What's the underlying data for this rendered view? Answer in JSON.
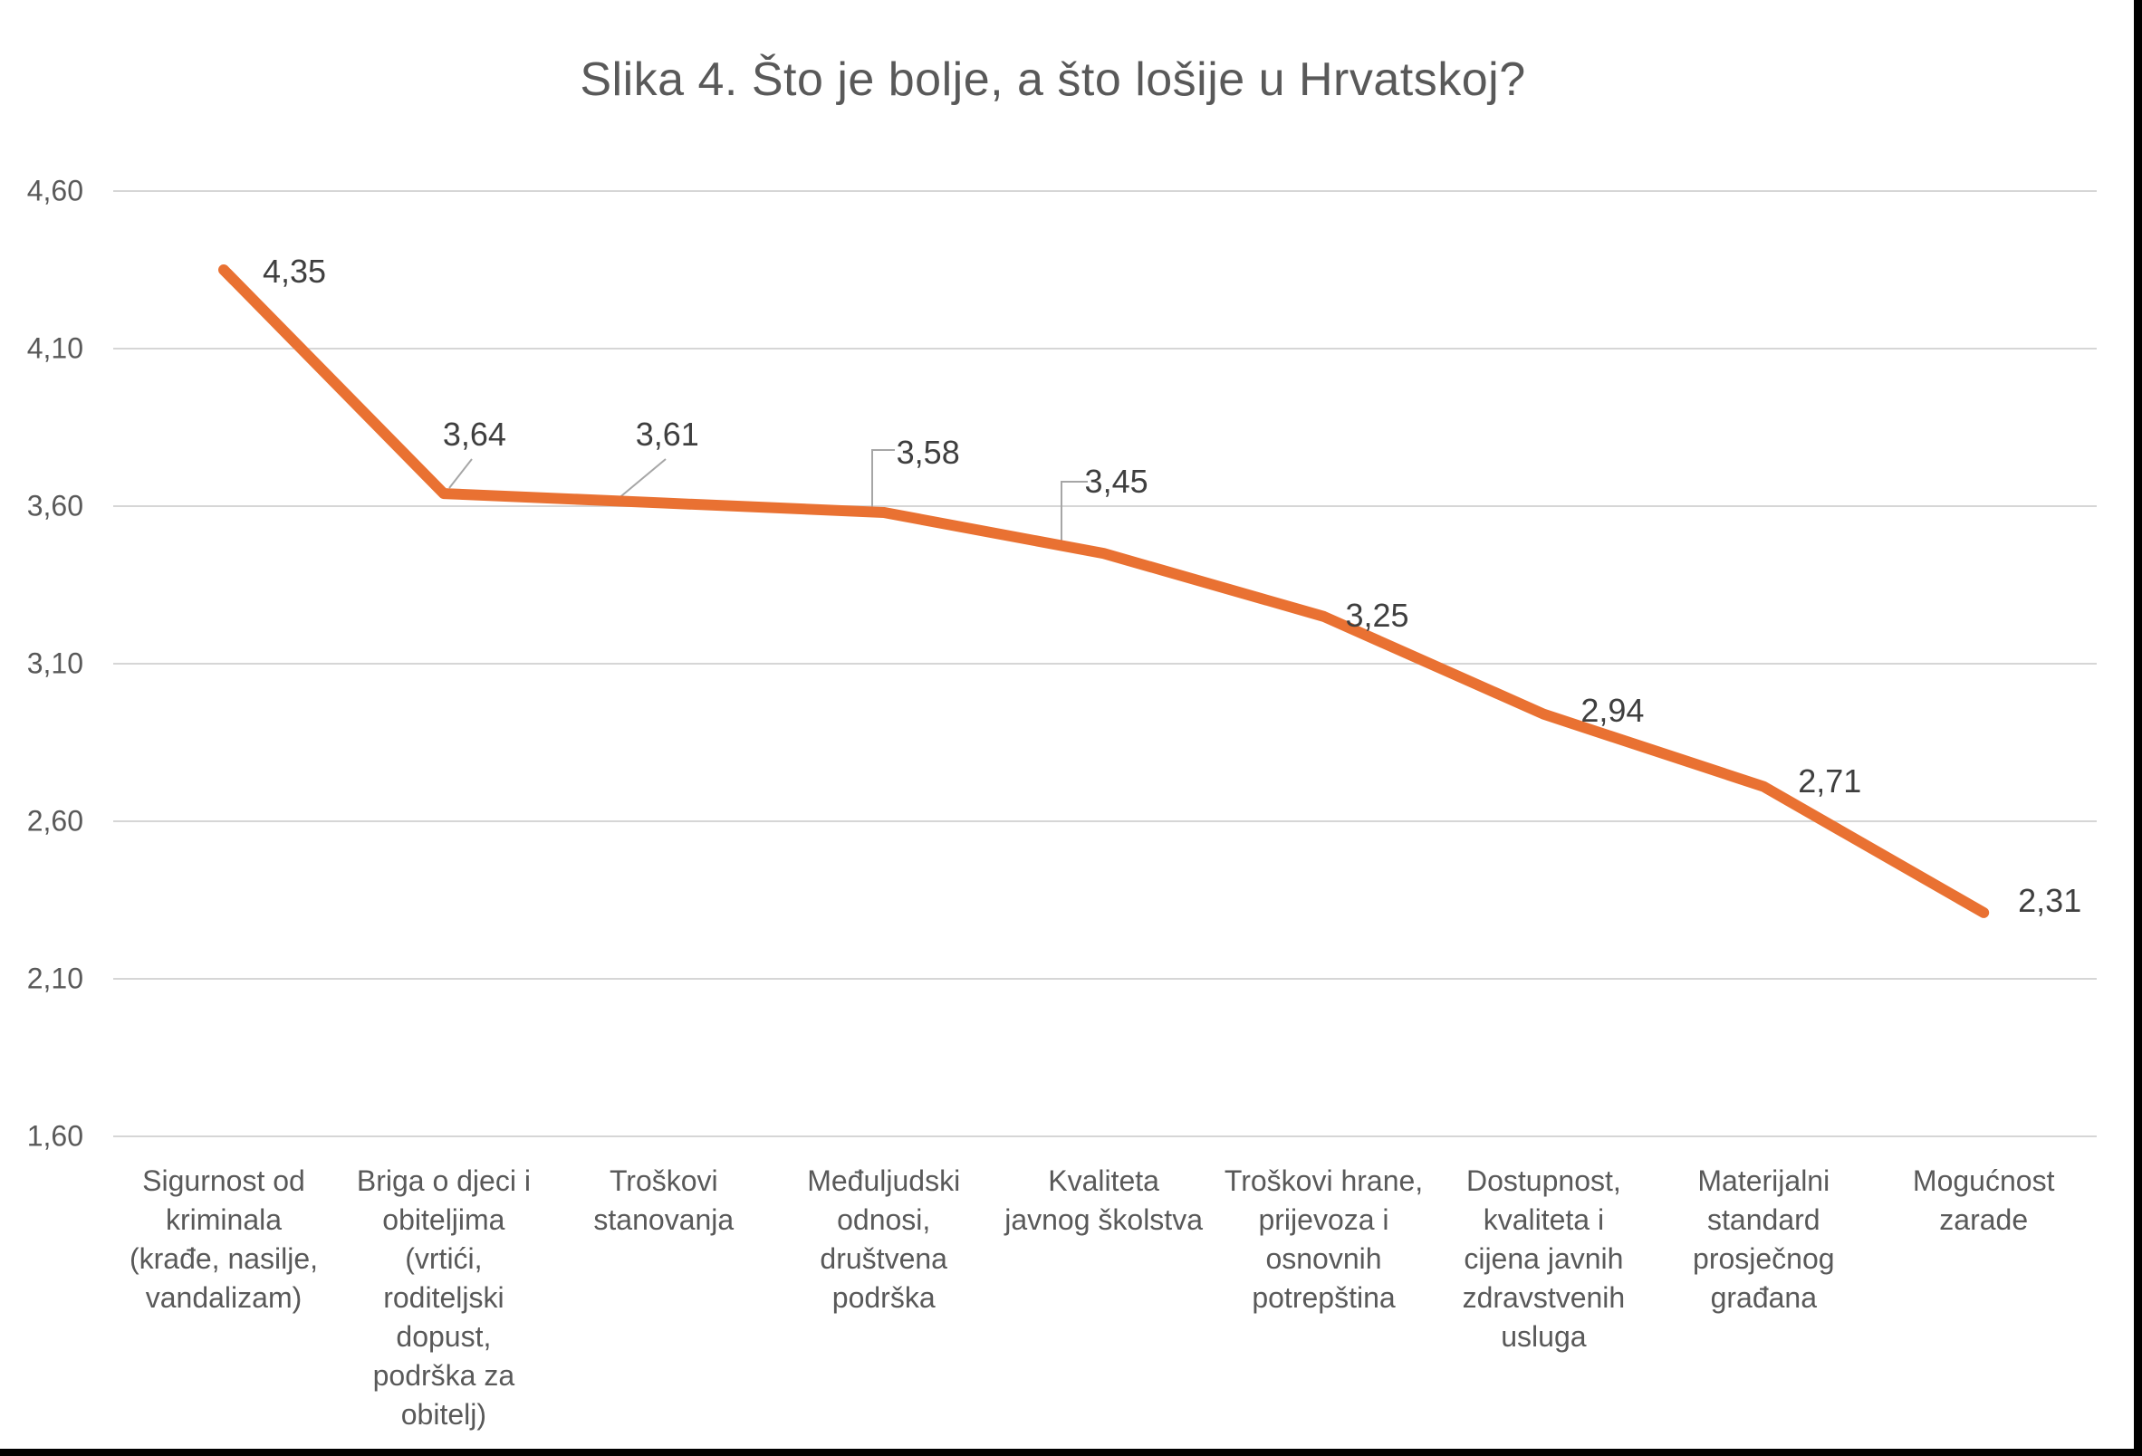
{
  "title": "Slika 4. Što je bolje, a što lošije u Hrvatskoj?",
  "colors": {
    "line": "#E97132",
    "grid": "#D6D6D6",
    "axis_text": "#595959",
    "data_label_text": "#3F3F3F",
    "leader_line": "#A6A6A6",
    "background": "#FFFFFF",
    "screen_edge": "#000000"
  },
  "chart_data": {
    "type": "line",
    "title": "Slika 4. Što je bolje, a što lošije u Hrvatskoj?",
    "categories": [
      "Sigurnost od\nkriminala\n(krađe, nasilje,\nvandalizam)",
      "Briga o djeci i\nobiteljima\n(vrtići,\nroditeljski\ndopust,\npodrška za\nobitelj)",
      "Troškovi\nstanovanja",
      "Međuljudski\nodnosi,\ndruštvena\npodrška",
      "Kvaliteta\njavnog školstva",
      "Troškovi hrane,\nprijevoza i\nosnovnih\npotrepština",
      "Dostupnost,\nkvaliteta i\ncijena javnih\nzdravstvenih\nusluga",
      "Materijalni\nstandard\nprosječnog\ngrađana",
      "Mogućnost\nzarade"
    ],
    "values": [
      4.35,
      3.64,
      3.61,
      3.58,
      3.45,
      3.25,
      2.94,
      2.71,
      2.31
    ],
    "value_labels": [
      "4,35",
      "3,64",
      "3,61",
      "3,58",
      "3,45",
      "3,25",
      "2,94",
      "2,71",
      "2,31"
    ],
    "y_ticks": [
      {
        "value": 4.6,
        "label": "4,60"
      },
      {
        "value": 4.1,
        "label": "4,10"
      },
      {
        "value": 3.6,
        "label": "3,60"
      },
      {
        "value": 3.1,
        "label": "3,10"
      },
      {
        "value": 2.6,
        "label": "2,60"
      },
      {
        "value": 2.1,
        "label": "2,10"
      },
      {
        "value": 1.6,
        "label": "1,60"
      }
    ],
    "ylim": [
      1.6,
      4.6
    ],
    "xlabel": "",
    "ylabel": "",
    "grid": true,
    "legend": false
  }
}
